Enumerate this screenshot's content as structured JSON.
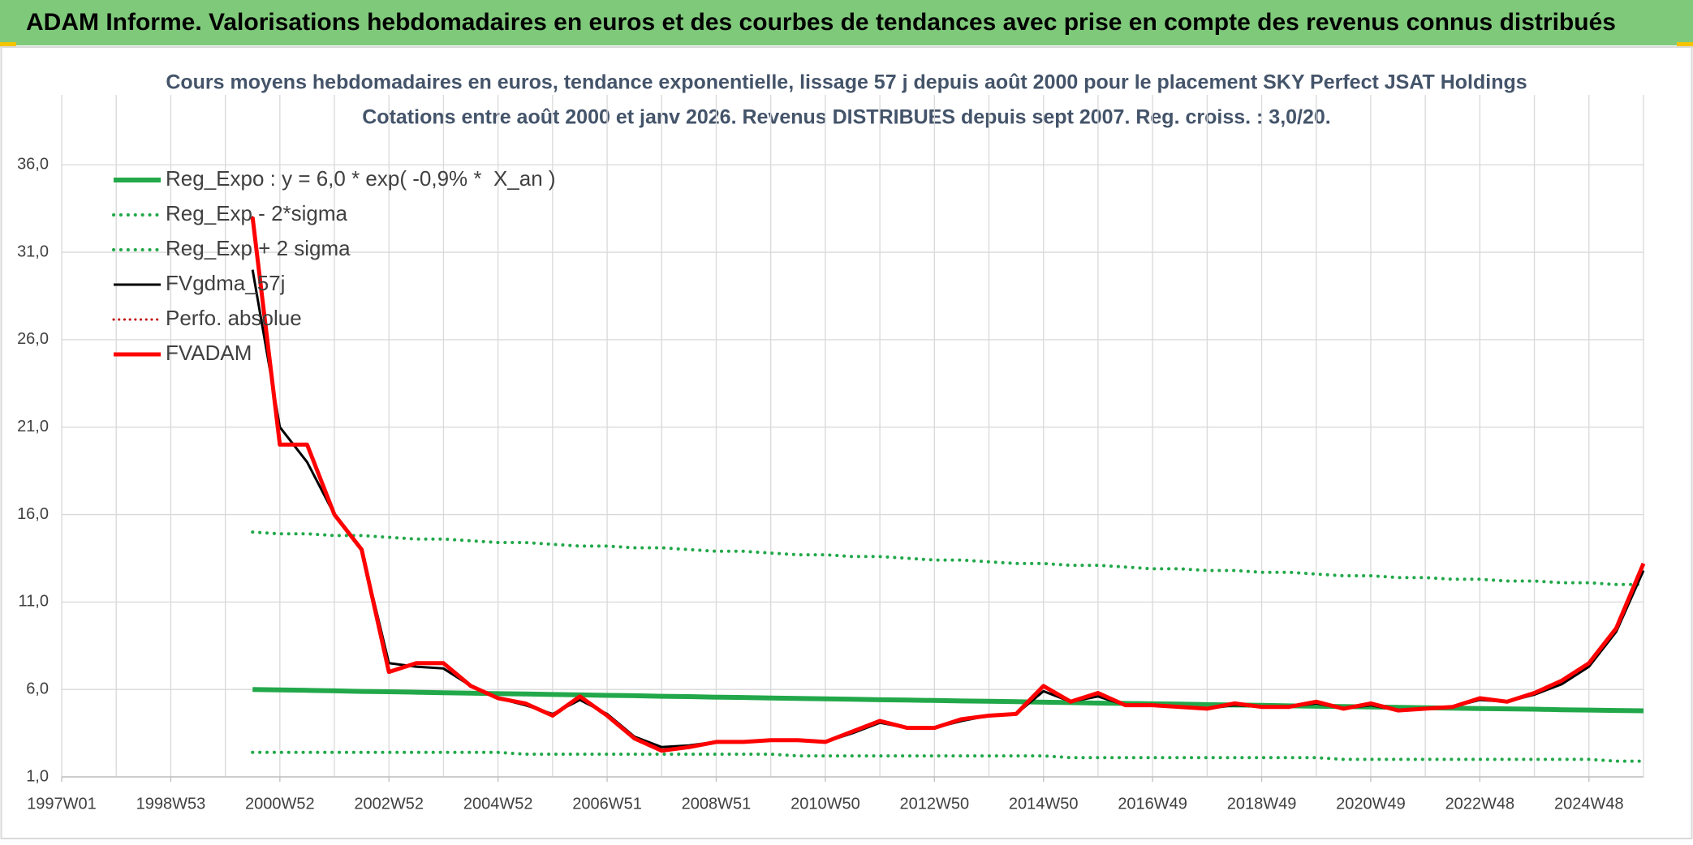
{
  "header": {
    "title": "ADAM Informe. Valorisations hebdomadaires en euros et des courbes de tendances avec prise en compte des revenus connus distribués"
  },
  "chart_data": {
    "type": "line",
    "title": "Cours moyens hebdomadaires en euros, tendance exponentielle, lissage 57 j depuis août 2000 pour le placement SKY Perfect JSAT Holdings",
    "subtitle": "Cotations entre août 2000 et janv 2026.  Revenus DISTRIBUES depuis sept 2007. Reg. croiss. : 3,0/20.",
    "categories": [
      "1997W01",
      null,
      null,
      null,
      "1998W53",
      null,
      null,
      null,
      "2000W52",
      null,
      null,
      null,
      "2002W52",
      null,
      null,
      null,
      "2004W52",
      null,
      null,
      null,
      "2006W51",
      null,
      null,
      null,
      "2008W51",
      null,
      null,
      null,
      "2010W50",
      null,
      null,
      null,
      "2012W50",
      null,
      null,
      null,
      "2014W50",
      null,
      null,
      null,
      "2016W49",
      null,
      null,
      null,
      "2018W49",
      null,
      null,
      null,
      "2020W49",
      null,
      null,
      null,
      "2022W48",
      null,
      null,
      null,
      "2024W48",
      null,
      null
    ],
    "ylim": [
      1,
      40
    ],
    "yticks": [
      {
        "value": 1,
        "label": "1,0"
      },
      {
        "value": 6,
        "label": "6,0"
      },
      {
        "value": 11,
        "label": "11,0"
      },
      {
        "value": 16,
        "label": "16,0"
      },
      {
        "value": 21,
        "label": "21,0"
      },
      {
        "value": 26,
        "label": "26,0"
      },
      {
        "value": 31,
        "label": "31,0"
      },
      {
        "value": 36,
        "label": "36,0"
      }
    ],
    "grid": true,
    "legend": "upper left",
    "series": [
      {
        "name": "Reg_Expo : y = 6,0 * exp( -0,9% *  X_an )",
        "color": "#22a84a",
        "style": "solid",
        "width": 6,
        "values": [
          null,
          null,
          null,
          null,
          null,
          null,
          null,
          6.0,
          5.97,
          5.95,
          5.92,
          5.89,
          5.87,
          5.84,
          5.81,
          5.79,
          5.76,
          5.74,
          5.71,
          5.69,
          5.66,
          5.64,
          5.61,
          5.59,
          5.56,
          5.54,
          5.51,
          5.49,
          5.46,
          5.44,
          5.41,
          5.39,
          5.37,
          5.34,
          5.32,
          5.3,
          5.27,
          5.25,
          5.22,
          5.2,
          5.18,
          5.16,
          5.13,
          5.11,
          5.09,
          5.06,
          5.04,
          5.02,
          5.0,
          4.98,
          4.95,
          4.93,
          4.91,
          4.89,
          4.87,
          4.84,
          4.82,
          4.8,
          4.78
        ]
      },
      {
        "name": "Reg_Exp - 2*sigma",
        "color": "#22a84a",
        "style": "dotted",
        "width": 4,
        "values": [
          null,
          null,
          null,
          null,
          null,
          null,
          null,
          2.4,
          2.4,
          2.4,
          2.4,
          2.4,
          2.4,
          2.4,
          2.4,
          2.4,
          2.4,
          2.3,
          2.3,
          2.3,
          2.3,
          2.3,
          2.3,
          2.3,
          2.3,
          2.3,
          2.3,
          2.2,
          2.2,
          2.2,
          2.2,
          2.2,
          2.2,
          2.2,
          2.2,
          2.2,
          2.2,
          2.1,
          2.1,
          2.1,
          2.1,
          2.1,
          2.1,
          2.1,
          2.1,
          2.1,
          2.1,
          2.0,
          2.0,
          2.0,
          2.0,
          2.0,
          2.0,
          2.0,
          2.0,
          2.0,
          2.0,
          1.9,
          1.9
        ]
      },
      {
        "name": "Reg_Exp + 2 sigma",
        "color": "#22a84a",
        "style": "dotted",
        "width": 4,
        "values": [
          null,
          null,
          null,
          null,
          null,
          null,
          null,
          15.0,
          14.9,
          14.9,
          14.8,
          14.8,
          14.7,
          14.6,
          14.6,
          14.5,
          14.4,
          14.4,
          14.3,
          14.2,
          14.2,
          14.1,
          14.1,
          14.0,
          13.9,
          13.9,
          13.8,
          13.7,
          13.7,
          13.6,
          13.6,
          13.5,
          13.4,
          13.4,
          13.3,
          13.2,
          13.2,
          13.1,
          13.1,
          13.0,
          12.9,
          12.9,
          12.8,
          12.8,
          12.7,
          12.7,
          12.6,
          12.5,
          12.5,
          12.4,
          12.4,
          12.3,
          12.3,
          12.2,
          12.2,
          12.1,
          12.1,
          12.0,
          12.0
        ]
      },
      {
        "name": "FVgdma_57j",
        "color": "#000000",
        "style": "solid",
        "width": 3,
        "values": [
          null,
          null,
          null,
          null,
          null,
          null,
          null,
          30,
          21,
          19,
          16,
          14,
          7.5,
          7.3,
          7.2,
          6.2,
          5.5,
          5.1,
          4.6,
          5.4,
          4.6,
          3.3,
          2.7,
          2.8,
          3.0,
          3.0,
          3.1,
          3.1,
          3.0,
          3.5,
          4.1,
          3.8,
          3.8,
          4.2,
          4.5,
          4.6,
          5.9,
          5.3,
          5.6,
          5.1,
          5.1,
          5.0,
          4.9,
          5.1,
          5.0,
          5.0,
          5.2,
          4.9,
          5.1,
          4.8,
          4.9,
          5.0,
          5.4,
          5.3,
          5.7,
          6.3,
          7.3,
          9.3,
          12.8
        ]
      },
      {
        "name": "Perfo. absolue",
        "color": "#c00000",
        "style": "dotted",
        "width": 3,
        "values": [
          null,
          null,
          null,
          null,
          null,
          null,
          null,
          33,
          20,
          20,
          16,
          14,
          7,
          7.5,
          7.5,
          6.2,
          5.5,
          5.2,
          4.5,
          5.6,
          4.5,
          3.2,
          2.5,
          2.7,
          3.0,
          3.0,
          3.1,
          3.1,
          3.0,
          3.6,
          4.2,
          3.8,
          3.8,
          4.3,
          4.5,
          4.6,
          6.2,
          5.3,
          5.8,
          5.1,
          5.1,
          5.0,
          4.9,
          5.2,
          5.0,
          5.0,
          5.3,
          4.9,
          5.2,
          4.8,
          4.9,
          5.0,
          5.5,
          5.3,
          5.8,
          6.5,
          7.5,
          9.5,
          13.2
        ]
      },
      {
        "name": "FVADAM",
        "color": "#ff0000",
        "style": "solid",
        "width": 5,
        "values": [
          null,
          null,
          null,
          null,
          null,
          null,
          null,
          33,
          20,
          20,
          16,
          14,
          7,
          7.5,
          7.5,
          6.2,
          5.5,
          5.2,
          4.5,
          5.6,
          4.5,
          3.2,
          2.5,
          2.7,
          3.0,
          3.0,
          3.1,
          3.1,
          3.0,
          3.6,
          4.2,
          3.8,
          3.8,
          4.3,
          4.5,
          4.6,
          6.2,
          5.3,
          5.8,
          5.1,
          5.1,
          5.0,
          4.9,
          5.2,
          5.0,
          5.0,
          5.3,
          4.9,
          5.2,
          4.8,
          4.9,
          5.0,
          5.5,
          5.3,
          5.8,
          6.5,
          7.5,
          9.5,
          13.2
        ]
      }
    ]
  }
}
